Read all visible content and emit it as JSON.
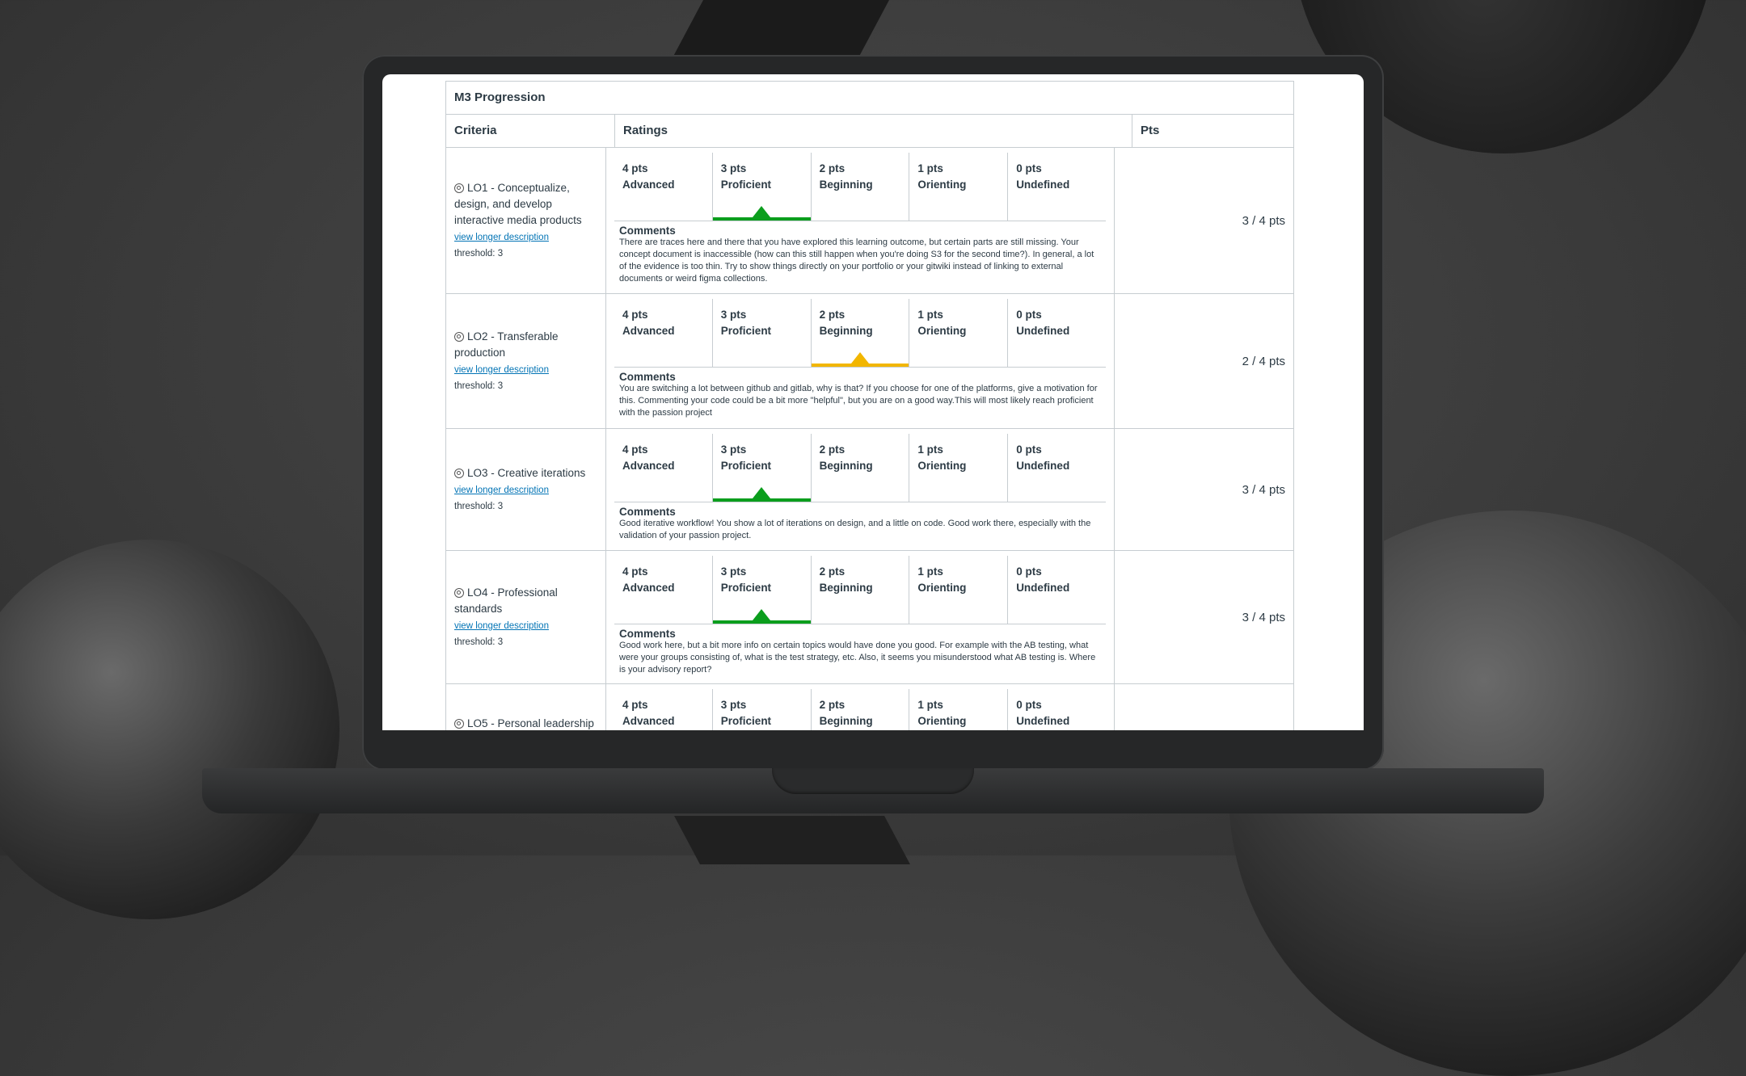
{
  "rubric": {
    "title": "M3 Progression",
    "headers": {
      "criteria": "Criteria",
      "ratings": "Ratings",
      "pts": "Pts"
    },
    "tier_points": [
      "4 pts",
      "3 pts",
      "2 pts",
      "1 pts",
      "0 pts"
    ],
    "tier_labels": [
      "Advanced",
      "Proficient",
      "Beginning",
      "Orienting",
      "Undefined"
    ],
    "view_longer": "view longer description",
    "comments_label": "Comments",
    "colors": {
      "selected_green": "#0b9e1d",
      "selected_yellow": "#f2b600",
      "link": "#0374b5"
    },
    "rows": [
      {
        "criterion": "LO1 - Conceptualize, design, and develop interactive media products",
        "threshold": "threshold: 3",
        "selected_tier": 1,
        "comment": "There are traces here and there that you have explored this learning outcome, but certain parts are still missing. Your concept document is inaccessible (how can this still happen when you're doing S3 for the second time?). In general, a lot of the evidence is too thin. Try to show things directly on your portfolio or your gitwiki instead of linking to external documents or weird figma collections.",
        "score": "3 / 4 pts"
      },
      {
        "criterion": "LO2 - Transferable production",
        "threshold": "threshold: 3",
        "selected_tier": 2,
        "comment": "You are switching a lot between github and gitlab, why is that? If you choose for one of the platforms, give a motivation for this. Commenting your code could be a bit more \"helpful\", but you are on a good way.This will most likely reach proficient with the passion project",
        "score": "2 / 4 pts"
      },
      {
        "criterion": "LO3 - Creative iterations",
        "threshold": "threshold: 3",
        "selected_tier": 1,
        "comment": "Good iterative workflow! You show a lot of iterations on design, and a little on code. Good work there, especially with the validation of your passion project.",
        "score": "3 / 4 pts"
      },
      {
        "criterion": "LO4 - Professional standards",
        "threshold": "threshold: 3",
        "selected_tier": 1,
        "comment": "Good work here, but a bit more info on certain topics would have done you good. For example with the AB testing, what were your groups consisting of, what is the test strategy, etc. Also, it seems you misunderstood what AB testing is. Where is your advisory report?",
        "score": "3 / 4 pts"
      },
      {
        "criterion": "LO5 - Personal leadership",
        "threshold": "",
        "selected_tier": -1,
        "comment": "",
        "score": ""
      }
    ]
  }
}
